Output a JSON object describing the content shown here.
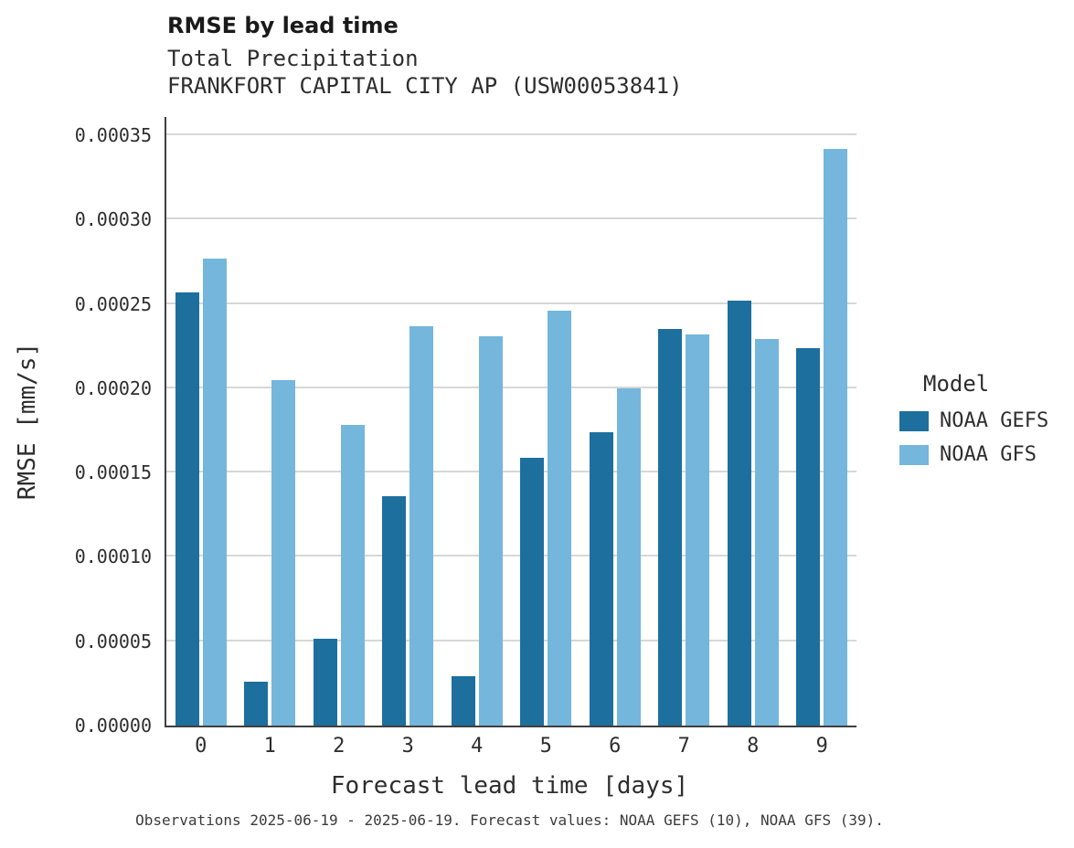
{
  "chart_data": {
    "type": "bar",
    "title": "RMSE by lead time",
    "subtitle1": "Total Precipitation",
    "subtitle2": "FRANKFORT CAPITAL CITY AP (USW00053841)",
    "xlabel": "Forecast lead time [days]",
    "ylabel": "RMSE [mm/s]",
    "legend_title": "Model",
    "caption": "Observations 2025-06-19 - 2025-06-19. Forecast values: NOAA GEFS (10), NOAA GFS (39).",
    "categories": [
      "0",
      "1",
      "2",
      "3",
      "4",
      "5",
      "6",
      "7",
      "8",
      "9"
    ],
    "series": [
      {
        "name": "NOAA GEFS",
        "color": "#1d6f9e",
        "values": [
          0.000257,
          2.6e-05,
          5.15e-05,
          0.000136,
          2.93e-05,
          0.000159,
          0.000174,
          0.000235,
          0.000252,
          0.000224
        ]
      },
      {
        "name": "NOAA GFS",
        "color": "#74b6dc",
        "values": [
          0.000277,
          0.000205,
          0.000178,
          0.000237,
          0.000231,
          0.000246,
          0.0002,
          0.000232,
          0.000229,
          0.000342
        ]
      }
    ],
    "ylim": [
      0,
      0.00035
    ],
    "yticks": [
      0,
      5e-05,
      0.0001,
      0.00015,
      0.0002,
      0.00025,
      0.0003,
      0.00035
    ],
    "ytick_labels": [
      "0.00000",
      "0.00005",
      "0.00010",
      "0.00015",
      "0.00020",
      "0.00025",
      "0.00030",
      "0.00035"
    ],
    "grid": "horizontal",
    "legend_position": "right"
  }
}
